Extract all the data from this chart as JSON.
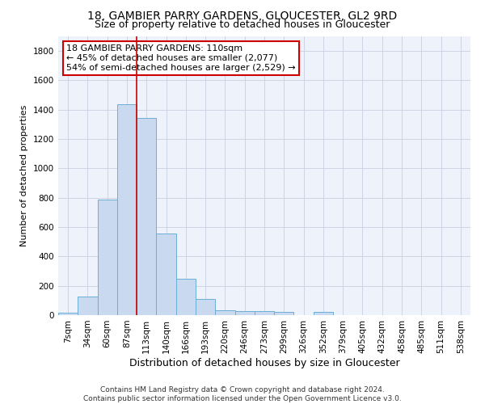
{
  "title1": "18, GAMBIER PARRY GARDENS, GLOUCESTER, GL2 9RD",
  "title2": "Size of property relative to detached houses in Gloucester",
  "xlabel": "Distribution of detached houses by size in Gloucester",
  "ylabel": "Number of detached properties",
  "bar_color": "#c9d9ef",
  "bar_edge_color": "#6baed6",
  "grid_color": "#c8d0e0",
  "background_color": "#eef2fa",
  "bin_labels": [
    "7sqm",
    "34sqm",
    "60sqm",
    "87sqm",
    "113sqm",
    "140sqm",
    "166sqm",
    "193sqm",
    "220sqm",
    "246sqm",
    "273sqm",
    "299sqm",
    "326sqm",
    "352sqm",
    "379sqm",
    "405sqm",
    "432sqm",
    "458sqm",
    "485sqm",
    "511sqm",
    "538sqm"
  ],
  "bar_values": [
    15,
    125,
    790,
    1440,
    1345,
    555,
    250,
    110,
    35,
    30,
    30,
    20,
    0,
    20,
    0,
    0,
    0,
    0,
    0,
    0,
    0
  ],
  "vline_color": "#cc0000",
  "vline_x_idx": 3.5,
  "annotation_text": "18 GAMBIER PARRY GARDENS: 110sqm\n← 45% of detached houses are smaller (2,077)\n54% of semi-detached houses are larger (2,529) →",
  "annotation_box_color": "#ffffff",
  "annotation_box_edge_color": "#cc0000",
  "ylim": [
    0,
    1900
  ],
  "yticks": [
    0,
    200,
    400,
    600,
    800,
    1000,
    1200,
    1400,
    1600,
    1800
  ],
  "footnote": "Contains HM Land Registry data © Crown copyright and database right 2024.\nContains public sector information licensed under the Open Government Licence v3.0.",
  "title1_fontsize": 10,
  "title2_fontsize": 9,
  "xlabel_fontsize": 9,
  "ylabel_fontsize": 8,
  "tick_fontsize": 7.5,
  "annot_fontsize": 8,
  "footnote_fontsize": 6.5
}
